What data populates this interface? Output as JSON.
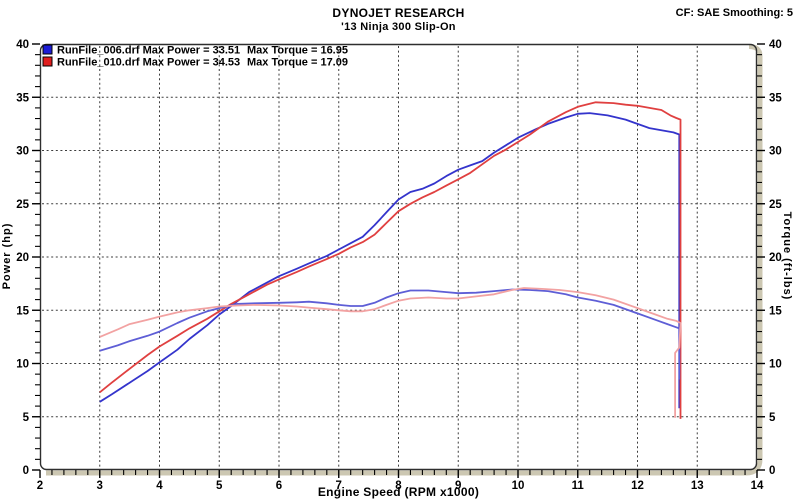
{
  "chart_data": {
    "type": "line",
    "title": "DYNOJET RESEARCH",
    "subtitle": "'13 Ninja 300 Slip-On",
    "annotation": "CF: SAE  Smoothing: 5",
    "xlabel": "Engine Speed (RPM x1000)",
    "ylabel_left": "Power (hp)",
    "ylabel_right": "Torque (ft-lbs)",
    "xlim": [
      2,
      14
    ],
    "ylim_left": [
      0,
      40
    ],
    "ylim_right": [
      0,
      40
    ],
    "x_major_step": 1,
    "x_minor_step": 0.2,
    "y_major_step": 5,
    "y_minor_step": 1,
    "grid": "dashed",
    "frame_shadow_color": "#ccc7b2",
    "grid_color": "#3d3d3d",
    "legend": [
      {
        "label": "RunFile_006.drf Max Power = 33.51",
        "label2": "Max Torque = 16.95",
        "color": "#1c1cd6",
        "max_power": 33.51,
        "max_torque": 16.95
      },
      {
        "label": "RunFile_010.drf Max Power = 34.53",
        "label2": "Max Torque = 17.09",
        "color": "#e01d1d",
        "max_power": 34.53,
        "max_torque": 17.09
      }
    ],
    "series": [
      {
        "name": "run006-power",
        "axis": "left",
        "color": "#3434cc",
        "points": [
          [
            3,
            6.4
          ],
          [
            3.2,
            7.1
          ],
          [
            3.5,
            8.2
          ],
          [
            3.8,
            9.3
          ],
          [
            4,
            10.1
          ],
          [
            4.3,
            11.3
          ],
          [
            4.5,
            12.3
          ],
          [
            4.8,
            13.6
          ],
          [
            5,
            14.6
          ],
          [
            5.2,
            15.4
          ],
          [
            5.5,
            16.7
          ],
          [
            5.8,
            17.6
          ],
          [
            6,
            18.2
          ],
          [
            6.3,
            18.9
          ],
          [
            6.5,
            19.4
          ],
          [
            6.8,
            20.1
          ],
          [
            7,
            20.7
          ],
          [
            7.2,
            21.3
          ],
          [
            7.4,
            21.9
          ],
          [
            7.6,
            23
          ],
          [
            7.8,
            24.2
          ],
          [
            8,
            25.4
          ],
          [
            8.2,
            26.1
          ],
          [
            8.4,
            26.4
          ],
          [
            8.6,
            26.9
          ],
          [
            8.8,
            27.6
          ],
          [
            9,
            28.2
          ],
          [
            9.2,
            28.6
          ],
          [
            9.4,
            29
          ],
          [
            9.6,
            29.8
          ],
          [
            9.8,
            30.5
          ],
          [
            10,
            31.2
          ],
          [
            10.3,
            32
          ],
          [
            10.5,
            32.5
          ],
          [
            10.8,
            33.1
          ],
          [
            11,
            33.45
          ],
          [
            11.2,
            33.51
          ],
          [
            11.5,
            33.3
          ],
          [
            11.8,
            32.9
          ],
          [
            12,
            32.5
          ],
          [
            12.2,
            32.1
          ],
          [
            12.4,
            31.9
          ],
          [
            12.6,
            31.7
          ],
          [
            12.7,
            31.5
          ],
          [
            12.7,
            5.8
          ]
        ]
      },
      {
        "name": "run010-power",
        "axis": "left",
        "color": "#e04040",
        "points": [
          [
            3,
            7.3
          ],
          [
            3.2,
            8.2
          ],
          [
            3.5,
            9.5
          ],
          [
            3.8,
            10.8
          ],
          [
            4,
            11.6
          ],
          [
            4.3,
            12.6
          ],
          [
            4.5,
            13.3
          ],
          [
            4.8,
            14.2
          ],
          [
            5,
            14.9
          ],
          [
            5.2,
            15.6
          ],
          [
            5.5,
            16.5
          ],
          [
            5.8,
            17.4
          ],
          [
            6,
            17.9
          ],
          [
            6.3,
            18.6
          ],
          [
            6.5,
            19.1
          ],
          [
            6.8,
            19.8
          ],
          [
            7,
            20.3
          ],
          [
            7.2,
            20.9
          ],
          [
            7.4,
            21.4
          ],
          [
            7.6,
            22.1
          ],
          [
            7.8,
            23.2
          ],
          [
            8,
            24.3
          ],
          [
            8.2,
            25
          ],
          [
            8.4,
            25.6
          ],
          [
            8.6,
            26.1
          ],
          [
            8.8,
            26.7
          ],
          [
            9,
            27.3
          ],
          [
            9.2,
            27.9
          ],
          [
            9.4,
            28.7
          ],
          [
            9.6,
            29.5
          ],
          [
            9.8,
            30.1
          ],
          [
            10,
            30.8
          ],
          [
            10.2,
            31.5
          ],
          [
            10.5,
            32.7
          ],
          [
            10.8,
            33.6
          ],
          [
            11,
            34.1
          ],
          [
            11.3,
            34.53
          ],
          [
            11.6,
            34.45
          ],
          [
            11.8,
            34.3
          ],
          [
            12,
            34.2
          ],
          [
            12.2,
            34
          ],
          [
            12.4,
            33.8
          ],
          [
            12.55,
            33.3
          ],
          [
            12.65,
            33.05
          ],
          [
            12.72,
            32.9
          ],
          [
            12.72,
            4.8
          ]
        ]
      },
      {
        "name": "run006-torque",
        "axis": "right",
        "color": "#5e5ed6",
        "points": [
          [
            3,
            11.2
          ],
          [
            3.3,
            11.7
          ],
          [
            3.5,
            12.1
          ],
          [
            3.8,
            12.6
          ],
          [
            4,
            13
          ],
          [
            4.3,
            13.8
          ],
          [
            4.5,
            14.3
          ],
          [
            4.8,
            14.9
          ],
          [
            5,
            15.2
          ],
          [
            5.3,
            15.6
          ],
          [
            5.6,
            15.65
          ],
          [
            6,
            15.7
          ],
          [
            6.3,
            15.75
          ],
          [
            6.5,
            15.8
          ],
          [
            6.8,
            15.65
          ],
          [
            7,
            15.5
          ],
          [
            7.2,
            15.4
          ],
          [
            7.4,
            15.4
          ],
          [
            7.6,
            15.7
          ],
          [
            7.8,
            16.2
          ],
          [
            8,
            16.6
          ],
          [
            8.2,
            16.85
          ],
          [
            8.5,
            16.85
          ],
          [
            8.8,
            16.7
          ],
          [
            9,
            16.6
          ],
          [
            9.3,
            16.65
          ],
          [
            9.6,
            16.8
          ],
          [
            9.9,
            16.95
          ],
          [
            10.2,
            16.9
          ],
          [
            10.5,
            16.8
          ],
          [
            10.8,
            16.5
          ],
          [
            11,
            16.2
          ],
          [
            11.3,
            15.9
          ],
          [
            11.6,
            15.5
          ],
          [
            12,
            14.7
          ],
          [
            12.3,
            14.1
          ],
          [
            12.5,
            13.7
          ],
          [
            12.65,
            13.4
          ],
          [
            12.7,
            13.3
          ],
          [
            12.7,
            8.5
          ]
        ]
      },
      {
        "name": "run010-torque",
        "axis": "right",
        "color": "#f2a2a2",
        "points": [
          [
            3,
            12.5
          ],
          [
            3.3,
            13.2
          ],
          [
            3.5,
            13.7
          ],
          [
            3.8,
            14.1
          ],
          [
            4,
            14.4
          ],
          [
            4.3,
            14.8
          ],
          [
            4.5,
            15
          ],
          [
            4.8,
            15.2
          ],
          [
            5,
            15.35
          ],
          [
            5.3,
            15.45
          ],
          [
            5.6,
            15.5
          ],
          [
            6,
            15.45
          ],
          [
            6.3,
            15.35
          ],
          [
            6.5,
            15.25
          ],
          [
            6.8,
            15.1
          ],
          [
            7,
            15
          ],
          [
            7.2,
            14.9
          ],
          [
            7.4,
            14.9
          ],
          [
            7.6,
            15.1
          ],
          [
            7.8,
            15.5
          ],
          [
            8,
            15.9
          ],
          [
            8.2,
            16.1
          ],
          [
            8.5,
            16.2
          ],
          [
            8.8,
            16.1
          ],
          [
            9,
            16.1
          ],
          [
            9.3,
            16.3
          ],
          [
            9.6,
            16.5
          ],
          [
            9.9,
            16.9
          ],
          [
            10.1,
            17.09
          ],
          [
            10.4,
            17
          ],
          [
            10.7,
            16.9
          ],
          [
            11,
            16.7
          ],
          [
            11.3,
            16.4
          ],
          [
            11.6,
            16
          ],
          [
            12,
            15.2
          ],
          [
            12.3,
            14.6
          ],
          [
            12.5,
            14.2
          ],
          [
            12.65,
            14
          ],
          [
            12.72,
            13.8
          ],
          [
            12.7,
            11.5
          ],
          [
            12.63,
            11
          ],
          [
            12.63,
            4.9
          ]
        ]
      }
    ]
  }
}
